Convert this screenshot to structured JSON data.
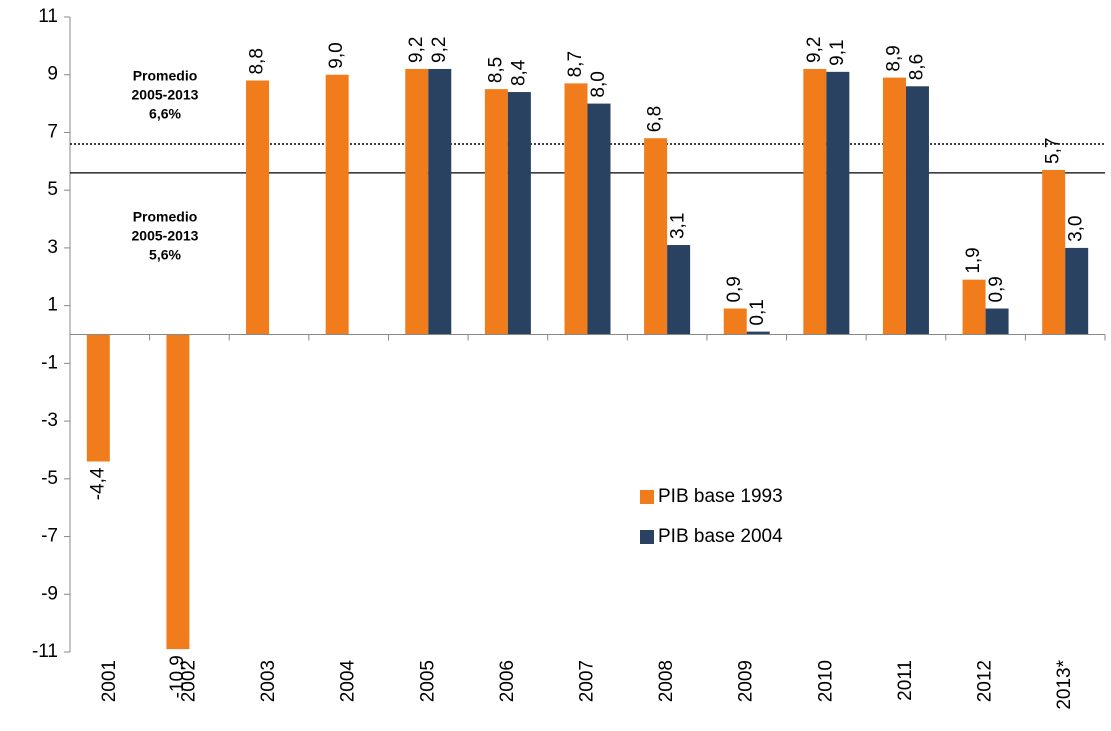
{
  "chart_data": {
    "type": "bar",
    "categories": [
      "2001",
      "2002",
      "2003",
      "2004",
      "2005",
      "2006",
      "2007",
      "2008",
      "2009",
      "2010",
      "2011",
      "2012",
      "2013*"
    ],
    "series": [
      {
        "name": "PIB base 1993",
        "color": "#f07c1b",
        "values": [
          -4.4,
          -10.9,
          8.8,
          9.0,
          9.2,
          8.5,
          8.7,
          6.8,
          0.9,
          9.2,
          8.9,
          1.9,
          5.7
        ],
        "value_labels": [
          "-4,4",
          "-10,9",
          "8,8",
          "9,0",
          "9,2",
          "8,5",
          "8,7",
          "6,8",
          "0,9",
          "9,2",
          "8,9",
          "1,9",
          "5,7"
        ]
      },
      {
        "name": "PIB base 2004",
        "color": "#2a4262",
        "values": [
          null,
          null,
          null,
          null,
          9.2,
          8.4,
          8.0,
          3.1,
          0.1,
          9.1,
          8.6,
          0.9,
          3.0
        ],
        "value_labels": [
          null,
          null,
          null,
          null,
          "9,2",
          "8,4",
          "8,0",
          "3,1",
          "0,1",
          "9,1",
          "8,6",
          "0,9",
          "3,0"
        ]
      }
    ],
    "ylim": [
      -11,
      11
    ],
    "yticks": [
      -11,
      -9,
      -7,
      -5,
      -3,
      -1,
      1,
      3,
      5,
      7,
      9,
      11
    ],
    "reference_lines": [
      {
        "value": 6.6,
        "style": "dotted",
        "label": [
          "Promedio",
          "2005-2013",
          "6,6%"
        ]
      },
      {
        "value": 5.6,
        "style": "solid",
        "label": [
          "Promedio",
          "2005-2013",
          "5,6%"
        ]
      }
    ]
  }
}
